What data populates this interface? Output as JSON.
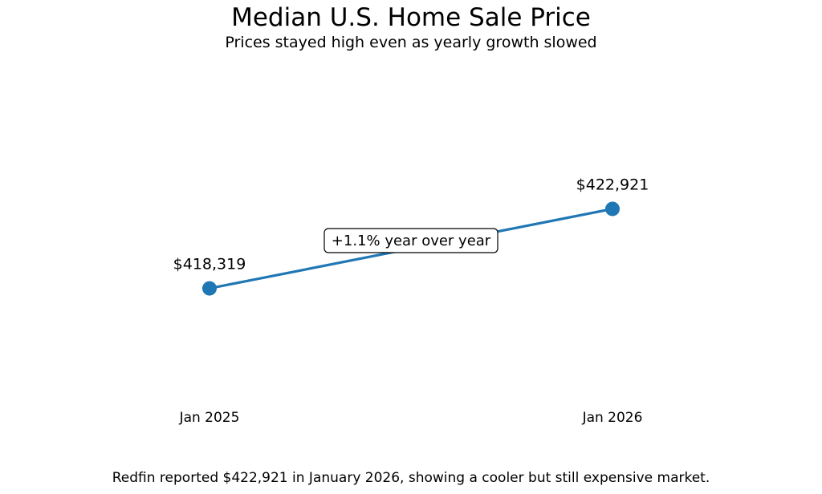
{
  "chart_data": {
    "type": "line",
    "title": "Median U.S. Home Sale Price",
    "subtitle": "Prices stayed high even as yearly growth slowed",
    "categories": [
      "Jan 2025",
      "Jan 2026"
    ],
    "values": [
      418319,
      422921
    ],
    "data_labels": [
      "$418,319",
      "$422,921"
    ],
    "annotation": "+1.1% year over year",
    "ylim": [
      411800,
      431300
    ],
    "grid": false,
    "axes_visible": false,
    "line_color": "#1f77b4",
    "footer": "Redfin reported $422,921 in January 2026, showing a cooler but still expensive market."
  }
}
